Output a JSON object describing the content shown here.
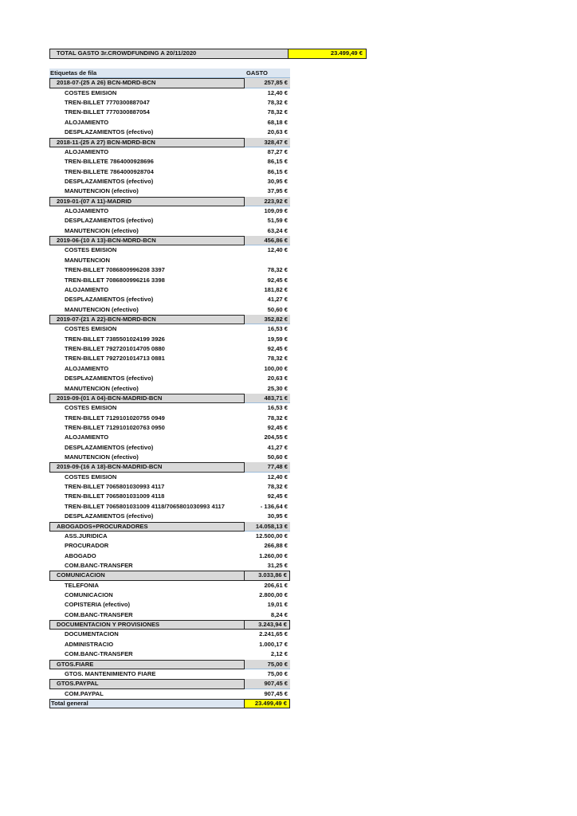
{
  "title": {
    "label": "TOTAL GASTO 3r.CROWDFUNDING A 20/11/2020",
    "value": "23.499,49 €"
  },
  "header": {
    "label": "Etiquetas de fila",
    "value": "GASTO"
  },
  "groups": [
    {
      "label": "2018-07-(25 A 26) BCN-MDRD-BCN",
      "value": "257,85 €",
      "items": [
        [
          "COSTES EMISION",
          "12,40 €"
        ],
        [
          "TREN-BILLET 7770300887047",
          "78,32 €"
        ],
        [
          "TREN-BILLET 7770300887054",
          "78,32 €"
        ],
        [
          "ALOJAMIENTO",
          "68,18 €"
        ],
        [
          "DESPLAZAMIENTOS (efectivo)",
          "20,63 €"
        ]
      ]
    },
    {
      "label": "2018-11-(25 A 27) BCN-MDRD-BCN",
      "value": "328,47 €",
      "items": [
        [
          "ALOJAMIENTO",
          "87,27 €"
        ],
        [
          "TREN-BILLETE 7864000928696",
          "86,15 €"
        ],
        [
          "TREN-BILLETE 7864000928704",
          "86,15 €"
        ],
        [
          "DESPLAZAMIENTOS (efectivo)",
          "30,95 €"
        ],
        [
          "MANUTENCION (efectivo)",
          "37,95 €"
        ]
      ]
    },
    {
      "label": "2019-01-(07 A 11)-MADRID",
      "value": "223,92 €",
      "items": [
        [
          "ALOJAMIENTO",
          "109,09 €"
        ],
        [
          "DESPLAZAMIENTOS (efectivo)",
          "51,59 €"
        ],
        [
          "MANUTENCION (efectivo)",
          "63,24 €"
        ]
      ]
    },
    {
      "label": "2019-06-(10 A 13)-BCN-MDRD-BCN",
      "value": "456,86 €",
      "items": [
        [
          "COSTES EMISION",
          "12,40 €"
        ],
        [
          "MANUTENCION",
          ""
        ],
        [
          "TREN-BILLET 7086800996208 3397",
          "78,32 €"
        ],
        [
          "TREN-BILLET 7086800996216 3398",
          "92,45 €"
        ],
        [
          "ALOJAMIENTO",
          "181,82 €"
        ],
        [
          "DESPLAZAMIENTOS (efectivo)",
          "41,27 €"
        ],
        [
          "MANUTENCION (efectivo)",
          "50,60 €"
        ]
      ]
    },
    {
      "label": "2019-07-(21 A 22)-BCN-MDRD-BCN",
      "value": "352,82 €",
      "items": [
        [
          "COSTES EMISION",
          "16,53 €"
        ],
        [
          "TREN-BILLET 7385501024199 3926",
          "19,59 €"
        ],
        [
          "TREN-BILLET 7927201014705 0880",
          "92,45 €"
        ],
        [
          "TREN-BILLET 7927201014713 0881",
          "78,32 €"
        ],
        [
          "ALOJAMIENTO",
          "100,00 €"
        ],
        [
          "DESPLAZAMIENTOS (efectivo)",
          "20,63 €"
        ],
        [
          "MANUTENCION (efectivo)",
          "25,30 €"
        ]
      ]
    },
    {
      "label": "2019-09-(01 A 04)-BCN-MADRID-BCN",
      "value": "483,71 €",
      "items": [
        [
          "COSTES EMISION",
          "16,53 €"
        ],
        [
          "TREN-BILLET 7129101020755 0949",
          "78,32 €"
        ],
        [
          "TREN-BILLET 7129101020763 0950",
          "92,45 €"
        ],
        [
          "ALOJAMIENTO",
          "204,55 €"
        ],
        [
          "DESPLAZAMIENTOS (efectivo)",
          "41,27 €"
        ],
        [
          "MANUTENCION (efectivo)",
          "50,60 €"
        ]
      ]
    },
    {
      "label": "2019-09-(16 A 18)-BCN-MADRID-BCN",
      "value": "77,48 €",
      "items": [
        [
          "COSTES EMISION",
          "12,40 €"
        ],
        [
          "TREN-BILLET 7065801030993 4117",
          "78,32 €"
        ],
        [
          "TREN-BILLET 7065801031009 4118",
          "92,45 €"
        ],
        [
          "TREN-BILLET 7065801031009 4118/7065801030993 4117",
          "- 136,64 €"
        ],
        [
          "DESPLAZAMIENTOS (efectivo)",
          "30,95 €"
        ]
      ]
    },
    {
      "label": "ABOGADOS+PROCURADORES",
      "value": "14.058,13 €",
      "items": [
        [
          "ASS.JURIDICA",
          "12.500,00 €"
        ],
        [
          "PROCURADOR",
          "266,88 €"
        ],
        [
          "ABOGADO",
          "1.260,00 €"
        ],
        [
          "COM.BANC-TRANSFER",
          "31,25 €"
        ]
      ]
    },
    {
      "label": "COMUNICACION",
      "value": "3.033,86 €",
      "boxed": true,
      "items": [
        [
          "TELEFONIA",
          "206,61 €"
        ],
        [
          "COMUNICACION",
          "2.800,00 €"
        ],
        [
          "COPISTERIA (efectivo)",
          "19,01 €"
        ],
        [
          "COM.BANC-TRANSFER",
          "8,24 €"
        ]
      ]
    },
    {
      "label": "DOCUMENTACION Y PROVISIONES",
      "value": "3.243,94 €",
      "boxed": true,
      "items": [
        [
          "DOCUMENTACION",
          "2.241,65 €"
        ],
        [
          "ADMINISTRACIO",
          "1.000,17 €"
        ],
        [
          "COM.BANC-TRANSFER",
          "2,12 €"
        ]
      ]
    },
    {
      "label": "GTOS.FIARE",
      "value": "75,00 €",
      "items": [
        [
          "GTOS. MANTENIMIENTO FIARE",
          "75,00 €"
        ]
      ]
    },
    {
      "label": "GTOS.PAYPAL",
      "value": "907,45 €",
      "items": [
        [
          "COM.PAYPAL",
          "907,45 €"
        ]
      ]
    }
  ],
  "total": {
    "label": "Total general",
    "value": "23.499,49 €"
  },
  "colors": {
    "highlight": "#ffff00",
    "group_bg": "#d9d9d9",
    "header_bg": "#dce6f1"
  }
}
